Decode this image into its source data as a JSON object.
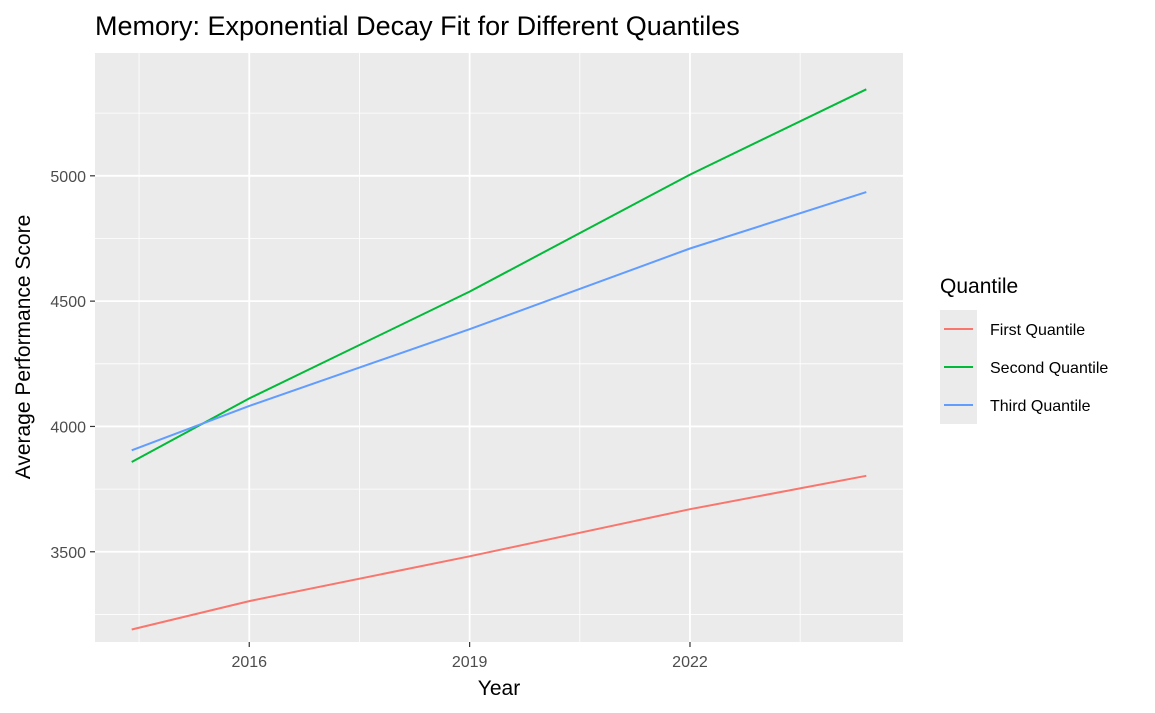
{
  "chart_data": {
    "type": "line",
    "title": "Memory: Exponential Decay Fit for Different Quantiles",
    "xlabel": "Year",
    "ylabel": "Average Performance Score",
    "xlim": [
      2013.9,
      2024.9
    ],
    "ylim": [
      3140,
      5490
    ],
    "x_ticks": [
      2016,
      2019,
      2022
    ],
    "x_minor_ticks": [
      2014.5,
      2017.5,
      2020.5,
      2023.5
    ],
    "y_ticks": [
      3500,
      4000,
      4500,
      5000
    ],
    "y_minor_ticks": [
      3250,
      3750,
      4250,
      4750,
      5250
    ],
    "grid": true,
    "legend": {
      "title": "Quantile",
      "position": "right"
    },
    "series": [
      {
        "name": "First Quantile",
        "color": "#F8766D",
        "x": [
          2014.4,
          2016,
          2019,
          2022,
          2024.4
        ],
        "values": [
          3190,
          3303,
          3482,
          3670,
          3803
        ]
      },
      {
        "name": "Second Quantile",
        "color": "#00BA38",
        "x": [
          2014.4,
          2016,
          2019,
          2022,
          2024.4
        ],
        "values": [
          3858,
          4112,
          4538,
          5005,
          5345
        ]
      },
      {
        "name": "Third Quantile",
        "color": "#619CFF",
        "x": [
          2014.4,
          2016,
          2019,
          2022,
          2024.4
        ],
        "values": [
          3905,
          4082,
          4388,
          4710,
          4935
        ]
      }
    ]
  }
}
